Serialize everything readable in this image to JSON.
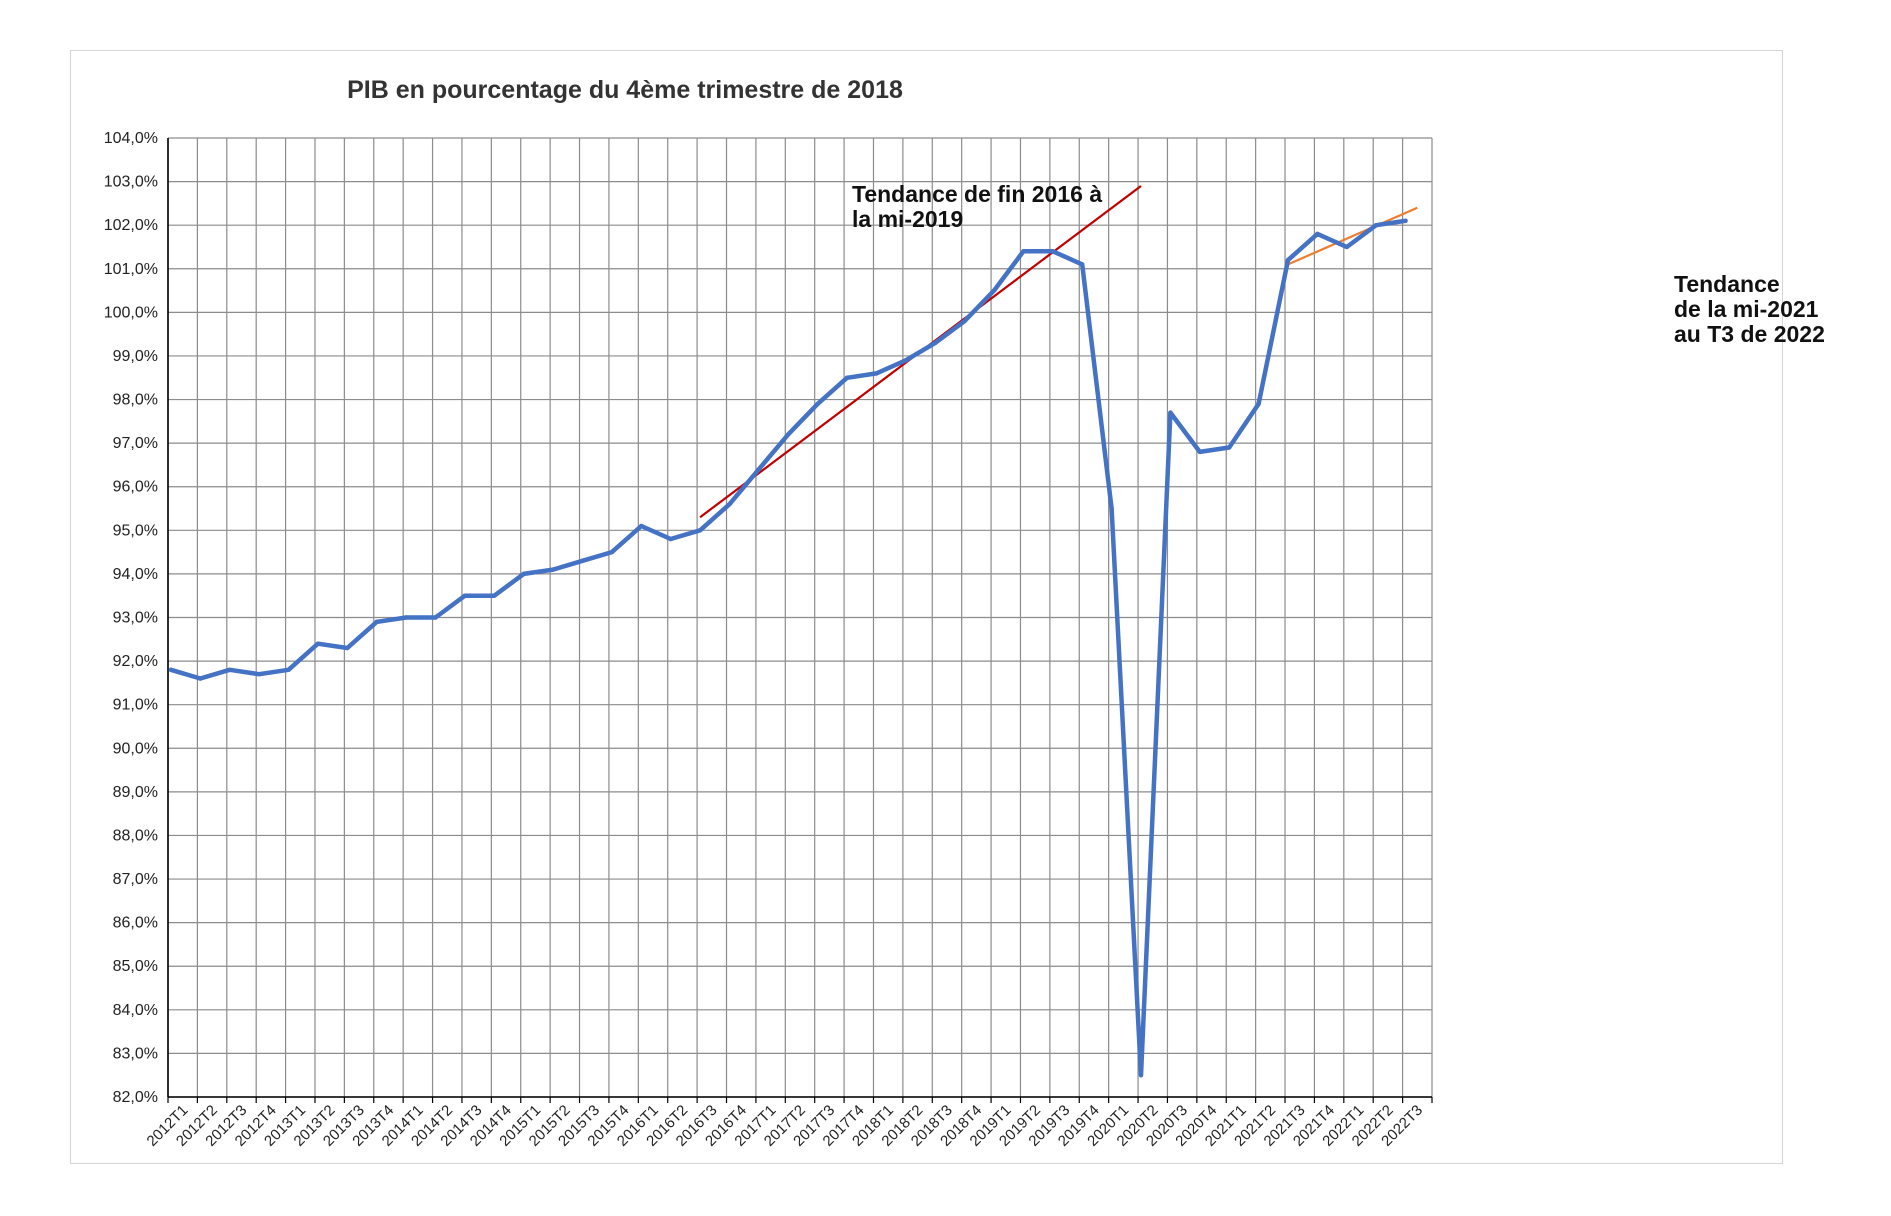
{
  "chart_data": {
    "type": "line",
    "title": "PIB en pourcentage du 4ème trimestre de 2018",
    "xlabel": "",
    "ylabel": "",
    "ylim": [
      82.0,
      104.0
    ],
    "y_tick_step": 1.0,
    "y_tick_format": "one-decimal-comma-percent",
    "grid": true,
    "categories": [
      "2012T1",
      "2012T2",
      "2012T3",
      "2012T4",
      "2013T1",
      "2013T2",
      "2013T3",
      "2013T4",
      "2014T1",
      "2014T2",
      "2014T3",
      "2014T4",
      "2015T1",
      "2015T2",
      "2015T3",
      "2015T4",
      "2016T1",
      "2016T2",
      "2016T3",
      "2016T4",
      "2017T1",
      "2017T2",
      "2017T3",
      "2017T4",
      "2018T1",
      "2018T2",
      "2018T3",
      "2018T4",
      "2019T1",
      "2019T2",
      "2019T3",
      "2019T4",
      "2020T1",
      "2020T2",
      "2020T3",
      "2020T4",
      "2021T1",
      "2021T2",
      "2021T3",
      "2021T4",
      "2022T1",
      "2022T2",
      "2022T3"
    ],
    "series": [
      {
        "name": "",
        "color": "#4472c4",
        "values": [
          91.8,
          91.6,
          91.8,
          91.7,
          91.8,
          92.4,
          92.3,
          92.9,
          93.0,
          93.0,
          93.5,
          93.5,
          94.0,
          94.1,
          94.3,
          94.5,
          95.1,
          94.8,
          95.0,
          95.6,
          96.4,
          97.2,
          97.9,
          98.5,
          98.6,
          98.9,
          99.3,
          99.8,
          100.5,
          101.4,
          101.4,
          101.1,
          95.5,
          82.5,
          97.7,
          96.8,
          96.9,
          97.9,
          101.2,
          101.8,
          101.5,
          102.0,
          102.1
        ],
        "point_x": [
          0.1,
          1.1,
          2.1,
          3.1,
          4.1,
          5.1,
          6.1,
          7.1,
          8.1,
          9.1,
          10.1,
          11.1,
          12.1,
          13.1,
          14.1,
          15.1,
          16.1,
          17.1,
          18.1,
          19.1,
          20.1,
          21.1,
          22.1,
          23.1,
          24.1,
          25.1,
          26.1,
          27.1,
          28.1,
          29.1,
          30.1,
          31.1,
          32.1,
          33.1,
          34.1,
          35.1,
          36.1,
          37.1,
          38.1,
          39.1,
          40.1,
          41.1,
          42.1
        ]
      }
    ],
    "trendlines": [
      {
        "label_lines": [
          "Tendance de fin 2016 à",
          "la mi-2019"
        ],
        "color": "#c00000",
        "from": {
          "x": 18.1,
          "y": 95.3
        },
        "to": {
          "x": 33.1,
          "y": 102.9
        }
      },
      {
        "label_lines": [
          "Tendance",
          "de la mi-2021",
          "au T3 de 2022"
        ],
        "color": "#ed7d31",
        "from": {
          "x": 38.1,
          "y": 101.1
        },
        "to": {
          "x": 42.5,
          "y": 102.4
        }
      }
    ]
  }
}
